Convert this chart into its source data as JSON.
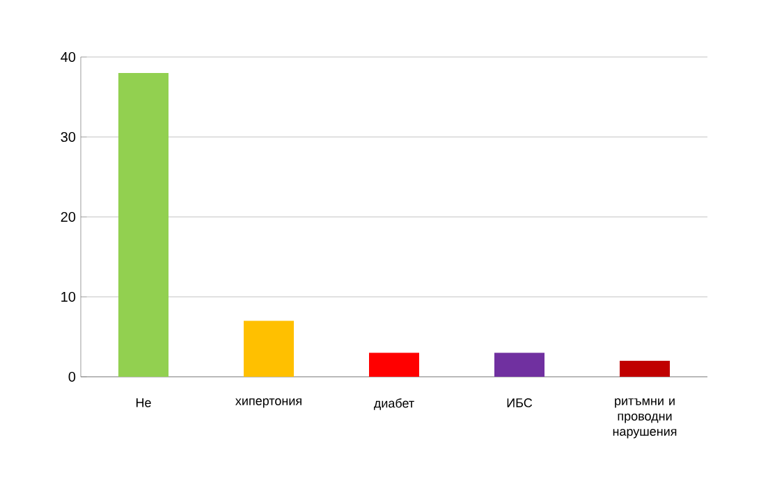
{
  "chart_data": {
    "type": "bar",
    "categories": [
      "Не",
      "хипертония",
      "диабет",
      "ИБС",
      "ритъмни и проводни нарушения"
    ],
    "values": [
      38,
      7,
      3,
      3,
      2
    ],
    "colors": [
      "#92d050",
      "#ffc000",
      "#ff0000",
      "#7030a0",
      "#c00000"
    ],
    "ylim": [
      0,
      40
    ],
    "yticks": [
      0,
      10,
      20,
      30,
      40
    ],
    "grid": "y"
  }
}
